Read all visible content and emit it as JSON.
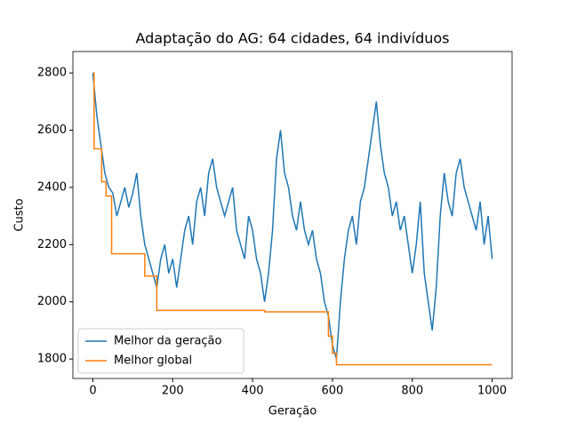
{
  "chart_data": {
    "type": "line",
    "title": "Adaptação do AG: 64 cidades, 64 indivíduos",
    "xlabel": "Geração",
    "ylabel": "Custo",
    "xlim": [
      -50,
      1050
    ],
    "ylim": [
      1732,
      2875
    ],
    "xticks": [
      0,
      200,
      400,
      600,
      800,
      1000
    ],
    "yticks": [
      1800,
      2000,
      2200,
      2400,
      2600,
      2800
    ],
    "grid": false,
    "legend": "lower left",
    "series": [
      {
        "name": "Melhor da geração",
        "color": "#1f77b4",
        "x": [
          0,
          10,
          20,
          30,
          40,
          50,
          60,
          70,
          80,
          90,
          100,
          110,
          120,
          130,
          140,
          150,
          160,
          170,
          180,
          190,
          200,
          210,
          220,
          230,
          240,
          250,
          260,
          270,
          280,
          290,
          300,
          310,
          320,
          330,
          340,
          350,
          360,
          370,
          380,
          390,
          400,
          410,
          420,
          430,
          440,
          450,
          460,
          470,
          480,
          490,
          500,
          510,
          520,
          530,
          540,
          550,
          560,
          570,
          580,
          590,
          600,
          610,
          620,
          630,
          640,
          650,
          660,
          670,
          680,
          690,
          700,
          710,
          720,
          730,
          740,
          750,
          760,
          770,
          780,
          790,
          800,
          810,
          820,
          830,
          840,
          850,
          860,
          870,
          880,
          890,
          900,
          910,
          920,
          930,
          940,
          950,
          960,
          970,
          980,
          990,
          1000
        ],
        "values": [
          2800,
          2650,
          2550,
          2450,
          2400,
          2380,
          2300,
          2350,
          2400,
          2330,
          2380,
          2450,
          2300,
          2200,
          2150,
          2100,
          2050,
          2150,
          2200,
          2100,
          2150,
          2050,
          2150,
          2250,
          2300,
          2200,
          2350,
          2400,
          2300,
          2450,
          2500,
          2400,
          2350,
          2300,
          2350,
          2400,
          2250,
          2200,
          2150,
          2300,
          2250,
          2150,
          2100,
          2000,
          2100,
          2250,
          2500,
          2600,
          2450,
          2400,
          2300,
          2250,
          2350,
          2250,
          2200,
          2250,
          2150,
          2100,
          2000,
          1950,
          1850,
          1800,
          2000,
          2150,
          2250,
          2300,
          2200,
          2350,
          2400,
          2500,
          2600,
          2700,
          2550,
          2450,
          2400,
          2300,
          2350,
          2250,
          2300,
          2200,
          2100,
          2200,
          2350,
          2100,
          2000,
          1900,
          2050,
          2300,
          2450,
          2350,
          2300,
          2450,
          2500,
          2400,
          2350,
          2300,
          2250,
          2350,
          2200,
          2300,
          2150
        ]
      },
      {
        "name": "Melhor global",
        "color": "#ff7f0e",
        "x": [
          0,
          3,
          3,
          22,
          22,
          33,
          33,
          47,
          47,
          130,
          130,
          160,
          160,
          430,
          430,
          590,
          590,
          600,
          600,
          610,
          610,
          1000
        ],
        "values": [
          2800,
          2800,
          2535,
          2535,
          2420,
          2420,
          2370,
          2370,
          2168,
          2168,
          2090,
          2090,
          1970,
          1970,
          1965,
          1965,
          1880,
          1880,
          1820,
          1820,
          1780,
          1780
        ]
      }
    ]
  }
}
